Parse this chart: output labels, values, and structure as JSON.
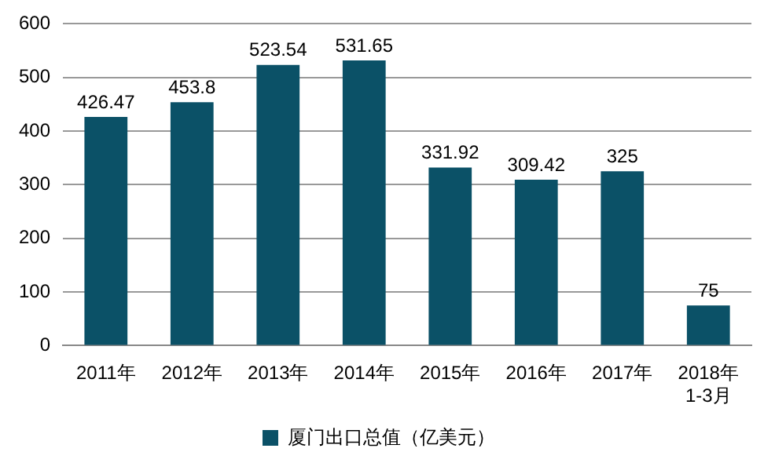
{
  "chart_data": {
    "type": "bar",
    "categories": [
      "2011年",
      "2012年",
      "2013年",
      "2014年",
      "2015年",
      "2016年",
      "2017年",
      "2018年\n1-3月"
    ],
    "series": [
      {
        "name": "厦门出口总值（亿美元）",
        "color": "#0b5167",
        "values": [
          426.47,
          453.8,
          523.54,
          531.65,
          331.92,
          309.42,
          325,
          75
        ]
      }
    ],
    "ylim": [
      0,
      600
    ],
    "yticks": [
      0,
      100,
      200,
      300,
      400,
      500,
      600
    ],
    "grid": "y",
    "legend": "bottom",
    "data_labels": true
  }
}
